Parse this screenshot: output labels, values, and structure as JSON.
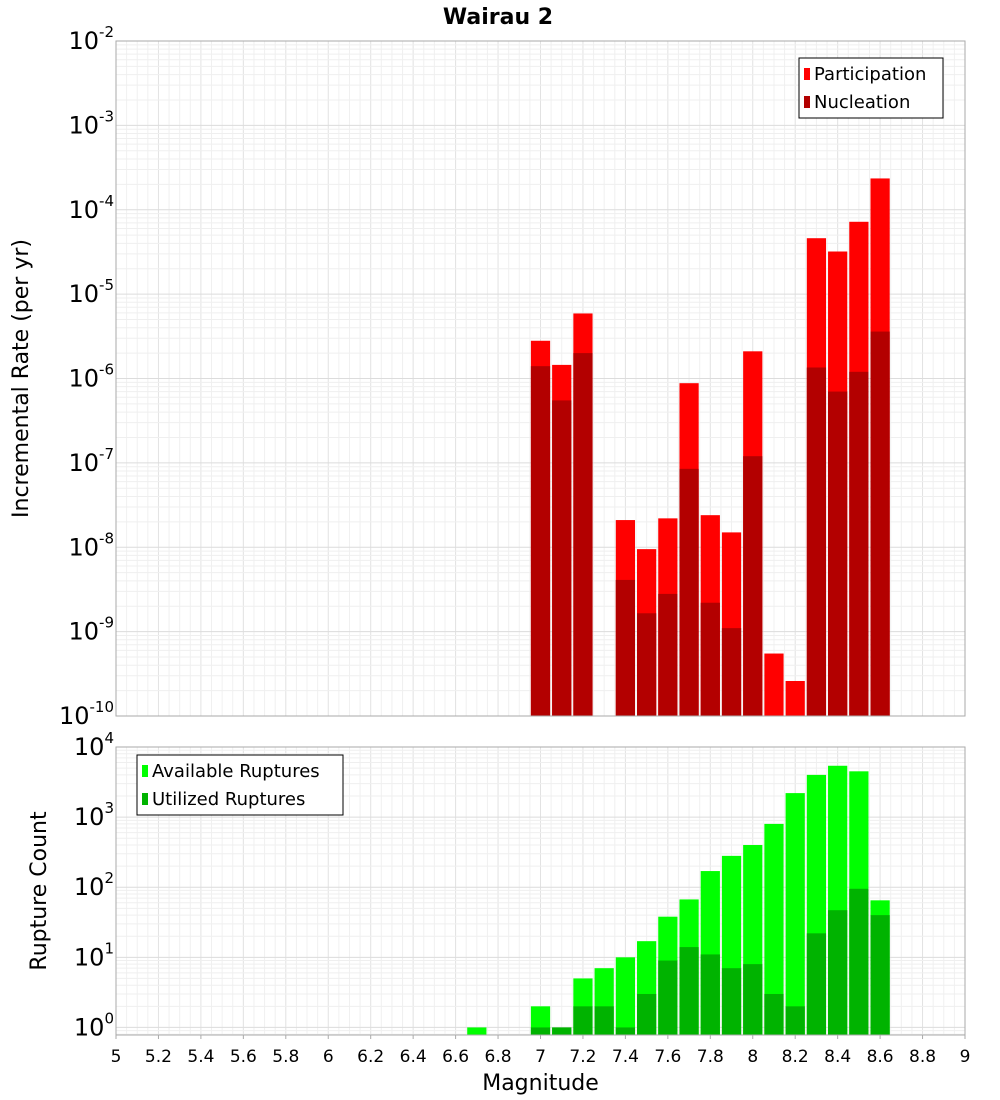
{
  "chart_data": [
    {
      "type": "bar",
      "title": "Wairau 2",
      "xlabel": "",
      "ylabel": "Incremental Rate (per yr)",
      "yscale": "log",
      "ylim": [
        1e-10,
        0.01
      ],
      "xlim": [
        5,
        9
      ],
      "ytick_labels": [
        "10-10",
        "10-9",
        "10-8",
        "10-7",
        "10-6",
        "10-5",
        "10-4",
        "10-3",
        "10-2"
      ],
      "legend_position": "top-right",
      "x": [
        7.0,
        7.1,
        7.2,
        7.4,
        7.5,
        7.6,
        7.7,
        7.8,
        7.9,
        8.0,
        8.1,
        8.2,
        8.3,
        8.4,
        8.5,
        8.6
      ],
      "series": [
        {
          "name": "Participation",
          "color": "#ff0000",
          "values": [
            2.8e-06,
            1.45e-06,
            5.9e-06,
            2.1e-08,
            9.5e-09,
            2.2e-08,
            8.8e-07,
            2.4e-08,
            1.5e-08,
            2.1e-06,
            5.5e-10,
            2.6e-10,
            4.6e-05,
            3.2e-05,
            7.2e-05,
            0.000235
          ]
        },
        {
          "name": "Nucleation",
          "color": "#b30000",
          "values": [
            1.4e-06,
            5.5e-07,
            2e-06,
            4.1e-09,
            1.65e-09,
            2.8e-09,
            8.5e-08,
            2.2e-09,
            1.1e-09,
            1.2e-07,
            null,
            null,
            1.35e-06,
            7e-07,
            1.2e-06,
            3.6e-06
          ]
        }
      ],
      "grid": true
    },
    {
      "type": "bar",
      "xlabel": "Magnitude",
      "ylabel": "Rupture Count",
      "yscale": "log",
      "ylim": [
        0.78,
        10000
      ],
      "xlim": [
        5,
        9
      ],
      "ytick_labels": [
        "100",
        "101",
        "102",
        "103",
        "104"
      ],
      "xtick_labels": [
        "5",
        "5.2",
        "5.4",
        "5.6",
        "5.8",
        "6",
        "6.2",
        "6.4",
        "6.6",
        "6.8",
        "7",
        "7.2",
        "7.4",
        "7.6",
        "7.8",
        "8",
        "8.2",
        "8.4",
        "8.6",
        "8.8",
        "9"
      ],
      "legend_position": "top-left",
      "x": [
        6.7,
        7.0,
        7.1,
        7.2,
        7.3,
        7.4,
        7.5,
        7.6,
        7.7,
        7.8,
        7.9,
        8.0,
        8.1,
        8.2,
        8.3,
        8.4,
        8.5,
        8.6
      ],
      "series": [
        {
          "name": "Available Ruptures",
          "color": "#00ff00",
          "values": [
            1,
            2,
            1,
            5,
            7,
            10,
            17,
            38,
            67,
            170,
            280,
            400,
            800,
            2200,
            4000,
            5400,
            4500,
            65
          ]
        },
        {
          "name": "Utilized Ruptures",
          "color": "#00b300",
          "values": [
            null,
            1,
            1,
            2,
            2,
            1,
            3,
            9,
            14,
            11,
            7,
            8,
            3,
            2,
            22,
            47,
            95,
            40
          ]
        }
      ],
      "grid": true
    }
  ]
}
